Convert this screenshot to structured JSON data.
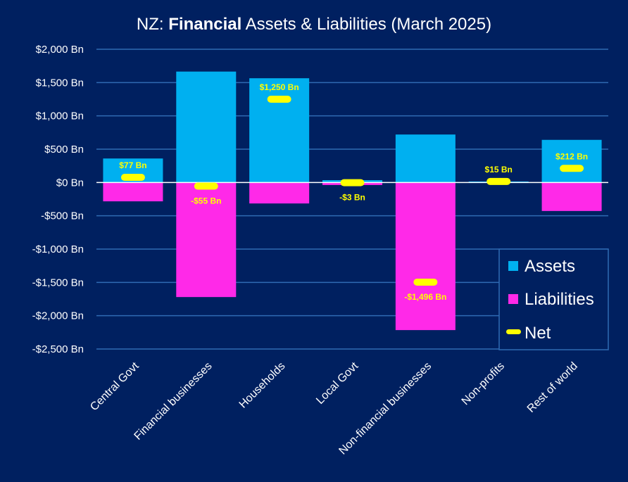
{
  "chart_data": {
    "type": "bar",
    "title_prefix": "NZ: ",
    "title_bold": "Financial",
    "title_suffix": " Assets & Liabilities (March 2025)",
    "xlabel": "",
    "ylabel": "",
    "ylim": [
      -2500,
      2000
    ],
    "y_ticks": [
      2000,
      1500,
      1000,
      500,
      0,
      -500,
      -1000,
      -1500,
      -2000,
      -2500
    ],
    "y_tick_labels": [
      "$2,000 Bn",
      "$1,500 Bn",
      "$1,000 Bn",
      "$500 Bn",
      "$0 Bn",
      "-$500 Bn",
      "-$1,000 Bn",
      "-$1,500 Bn",
      "-$2,000 Bn",
      "-$2,500 Bn"
    ],
    "grid": true,
    "legend_position": "bottom-right",
    "categories": [
      "Central Govt",
      "Financial businesses",
      "Households",
      "Local Govt",
      "Non-financial businesses",
      "Non-profits",
      "Rest of world"
    ],
    "series": [
      {
        "name": "Assets",
        "type": "bar",
        "color": "#00b0f0",
        "values": [
          360,
          1665,
          1565,
          35,
          720,
          15,
          640
        ]
      },
      {
        "name": "Liabilities",
        "type": "bar",
        "color": "#ff29e8",
        "values": [
          -283,
          -1720,
          -315,
          -38,
          -2216,
          0,
          -428
        ]
      },
      {
        "name": "Net",
        "type": "marker",
        "color": "#ffff00",
        "values": [
          77,
          -55,
          1250,
          -3,
          -1496,
          15,
          212
        ]
      }
    ],
    "net_labels": [
      "$77 Bn",
      "-$55 Bn",
      "$1,250 Bn",
      "-$3 Bn",
      "-$1,496 Bn",
      "$15 Bn",
      "$212 Bn"
    ],
    "net_label_side": [
      "above",
      "below",
      "above",
      "below",
      "below",
      "above",
      "above"
    ]
  }
}
